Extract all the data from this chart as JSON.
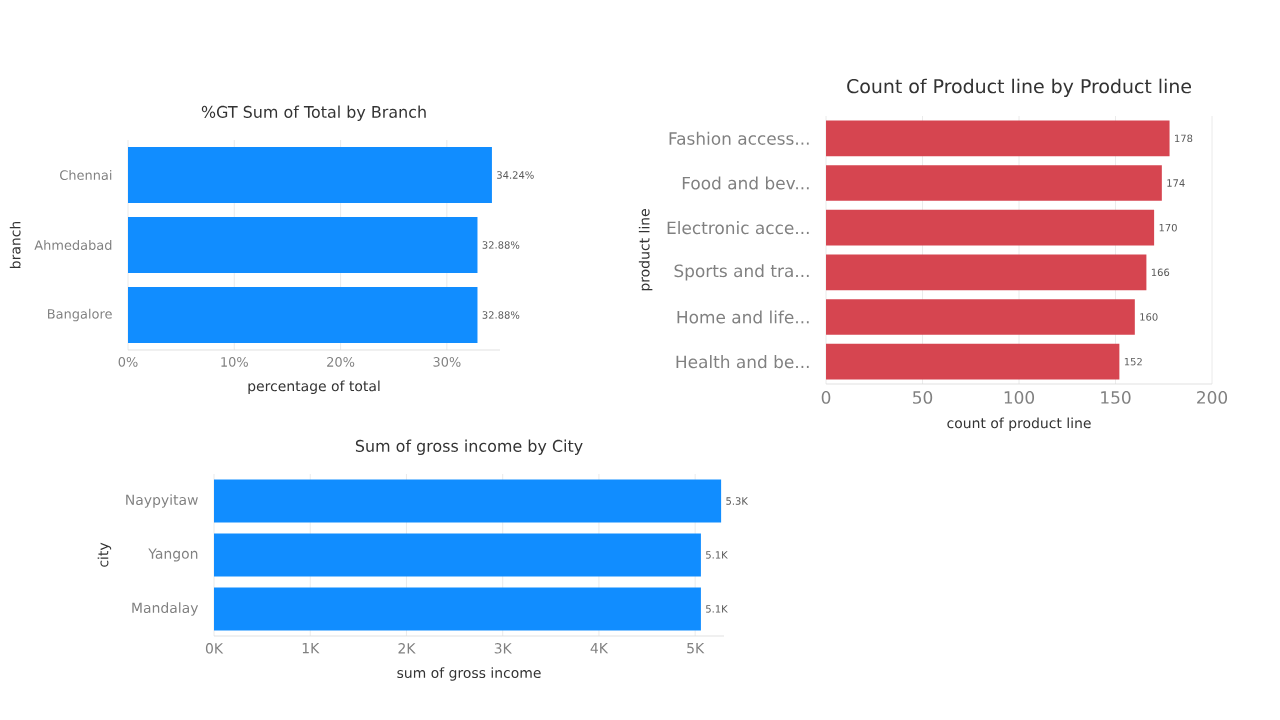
{
  "chart_data": [
    {
      "type": "bar",
      "orientation": "horizontal",
      "title": "%GT Sum of Total by Branch",
      "xlabel": "percentage of total",
      "ylabel": "branch",
      "categories": [
        "Chennai",
        "Ahmedabad",
        "Bangalore"
      ],
      "values": [
        34.24,
        32.88,
        32.88
      ],
      "value_labels": [
        "34.24%",
        "32.88%",
        "32.88%"
      ],
      "color": "#118dff",
      "xlim": [
        0,
        35
      ],
      "xticks": [
        {
          "value": 0,
          "label": "0%"
        },
        {
          "value": 10,
          "label": "10%"
        },
        {
          "value": 20,
          "label": "20%"
        },
        {
          "value": 30,
          "label": "30%"
        }
      ],
      "grid": "x"
    },
    {
      "type": "bar",
      "orientation": "horizontal",
      "title": "Count of Product line by Product line",
      "xlabel": "count of product line",
      "ylabel": "product line",
      "categories": [
        "Fashion access...",
        "Food and bev...",
        "Electronic acce...",
        "Sports and tra...",
        "Home and life...",
        "Health and be..."
      ],
      "values": [
        178,
        174,
        170,
        166,
        160,
        152
      ],
      "data_labels": true,
      "color": "#d64550",
      "xlim": [
        0,
        200
      ],
      "xticks": [
        0,
        50,
        100,
        150,
        200
      ],
      "grid": "x"
    },
    {
      "type": "bar",
      "orientation": "horizontal",
      "title": "Sum of gross income by City",
      "xlabel": "sum of gross income",
      "ylabel": "city",
      "categories": [
        "Naypyitaw",
        "Yangon",
        "Mandalay"
      ],
      "values": [
        5270,
        5060,
        5060
      ],
      "value_labels": [
        "5.3K",
        "5.1K",
        "5.1K"
      ],
      "color": "#118dff",
      "xlim": [
        0,
        5300
      ],
      "xticks": [
        {
          "value": 0,
          "label": "0K"
        },
        {
          "value": 1000,
          "label": "1K"
        },
        {
          "value": 2000,
          "label": "2K"
        },
        {
          "value": 3000,
          "label": "3K"
        },
        {
          "value": 4000,
          "label": "4K"
        },
        {
          "value": 5000,
          "label": "5K"
        }
      ],
      "grid": "x"
    }
  ]
}
